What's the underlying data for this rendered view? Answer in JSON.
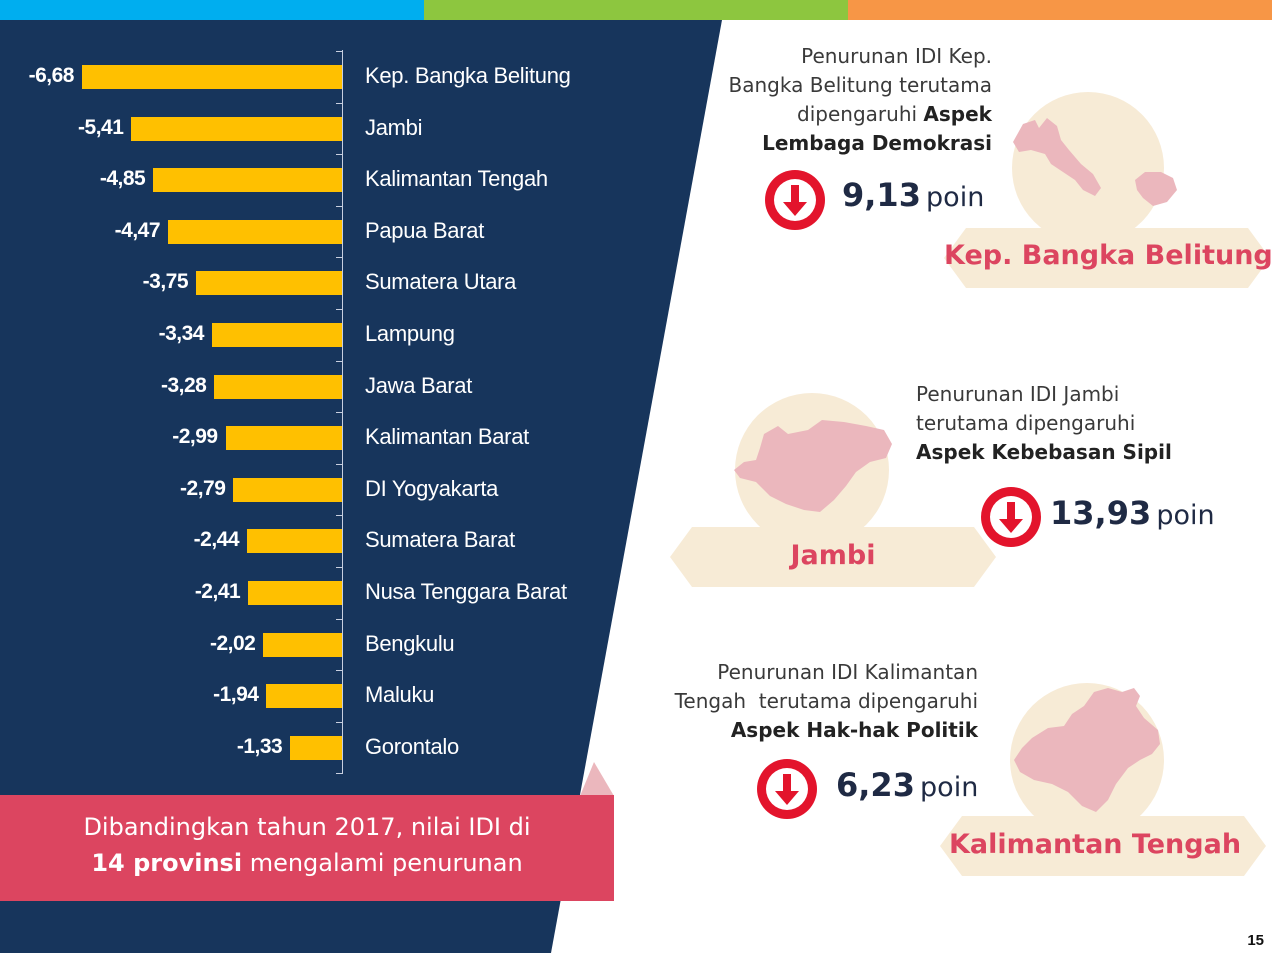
{
  "colors": {
    "navy": "#17355C",
    "bar": "#FFC000",
    "accent_red": "#DC4560",
    "cream": "#F7EBD6",
    "map_pink": "#EBB7BD",
    "top_blue": "#00AEEF",
    "top_green": "#8DC63F",
    "top_orange": "#F79646"
  },
  "chart_data": {
    "type": "bar",
    "orientation": "horizontal",
    "categories": [
      "Kep. Bangka Belitung",
      "Jambi",
      "Kalimantan Tengah",
      "Papua Barat",
      "Sumatera Utara",
      "Lampung",
      "Jawa Barat",
      "Kalimantan Barat",
      "DI Yogyakarta",
      "Sumatera Barat",
      "Nusa Tenggara Barat",
      "Bengkulu",
      "Maluku",
      "Gorontalo"
    ],
    "values": [
      -6.68,
      -5.41,
      -4.85,
      -4.47,
      -3.75,
      -3.34,
      -3.28,
      -2.99,
      -2.79,
      -2.44,
      -2.41,
      -2.02,
      -1.94,
      -1.33
    ],
    "value_labels": [
      "-6,68",
      "-5,41",
      "-4,85",
      "-4,47",
      "-3,75",
      "-3,34",
      "-3,28",
      "-2,99",
      "-2,79",
      "-2,44",
      "-2,41",
      "-2,02",
      "-1,94",
      "-1,33"
    ],
    "title": "",
    "xlabel": "",
    "ylabel": "",
    "xlim": [
      -6.68,
      0
    ],
    "grid": false,
    "legend": "none"
  },
  "summary": {
    "line1": "Dibandingkan tahun 2017, nilai IDI di",
    "line2_bold": "14 provinsi",
    "line2_rest": " mengalami penurunan"
  },
  "highlights": [
    {
      "province": "Kep. Bangka Belitung",
      "desc_plain": "Penurunan IDI Kep. Bangka Belitung terutama dipengaruhi ",
      "desc_lines": [
        "Penurunan IDI Kep.",
        "Bangka Belitung terutama",
        "dipengaruhi "
      ],
      "aspect_lines": [
        "Aspek",
        "Lembaga Demokrasi"
      ],
      "points_value": "9,13",
      "points_unit": "poin",
      "icon": "down-arrow-icon"
    },
    {
      "province": "Jambi",
      "desc_lines": [
        "Penurunan IDI Jambi",
        "terutama dipengaruhi"
      ],
      "aspect_lines": [
        "Aspek Kebebasan Sipil"
      ],
      "points_value": "13,93",
      "points_unit": "poin",
      "icon": "down-arrow-icon"
    },
    {
      "province": "Kalimantan Tengah",
      "desc_lines": [
        "Penurunan IDI Kalimantan",
        "Tengah  terutama dipengaruhi"
      ],
      "aspect_lines": [
        "Aspek Hak-hak Politik"
      ],
      "points_value": "6,23",
      "points_unit": "poin",
      "icon": "down-arrow-icon"
    }
  ],
  "page_number": "15"
}
